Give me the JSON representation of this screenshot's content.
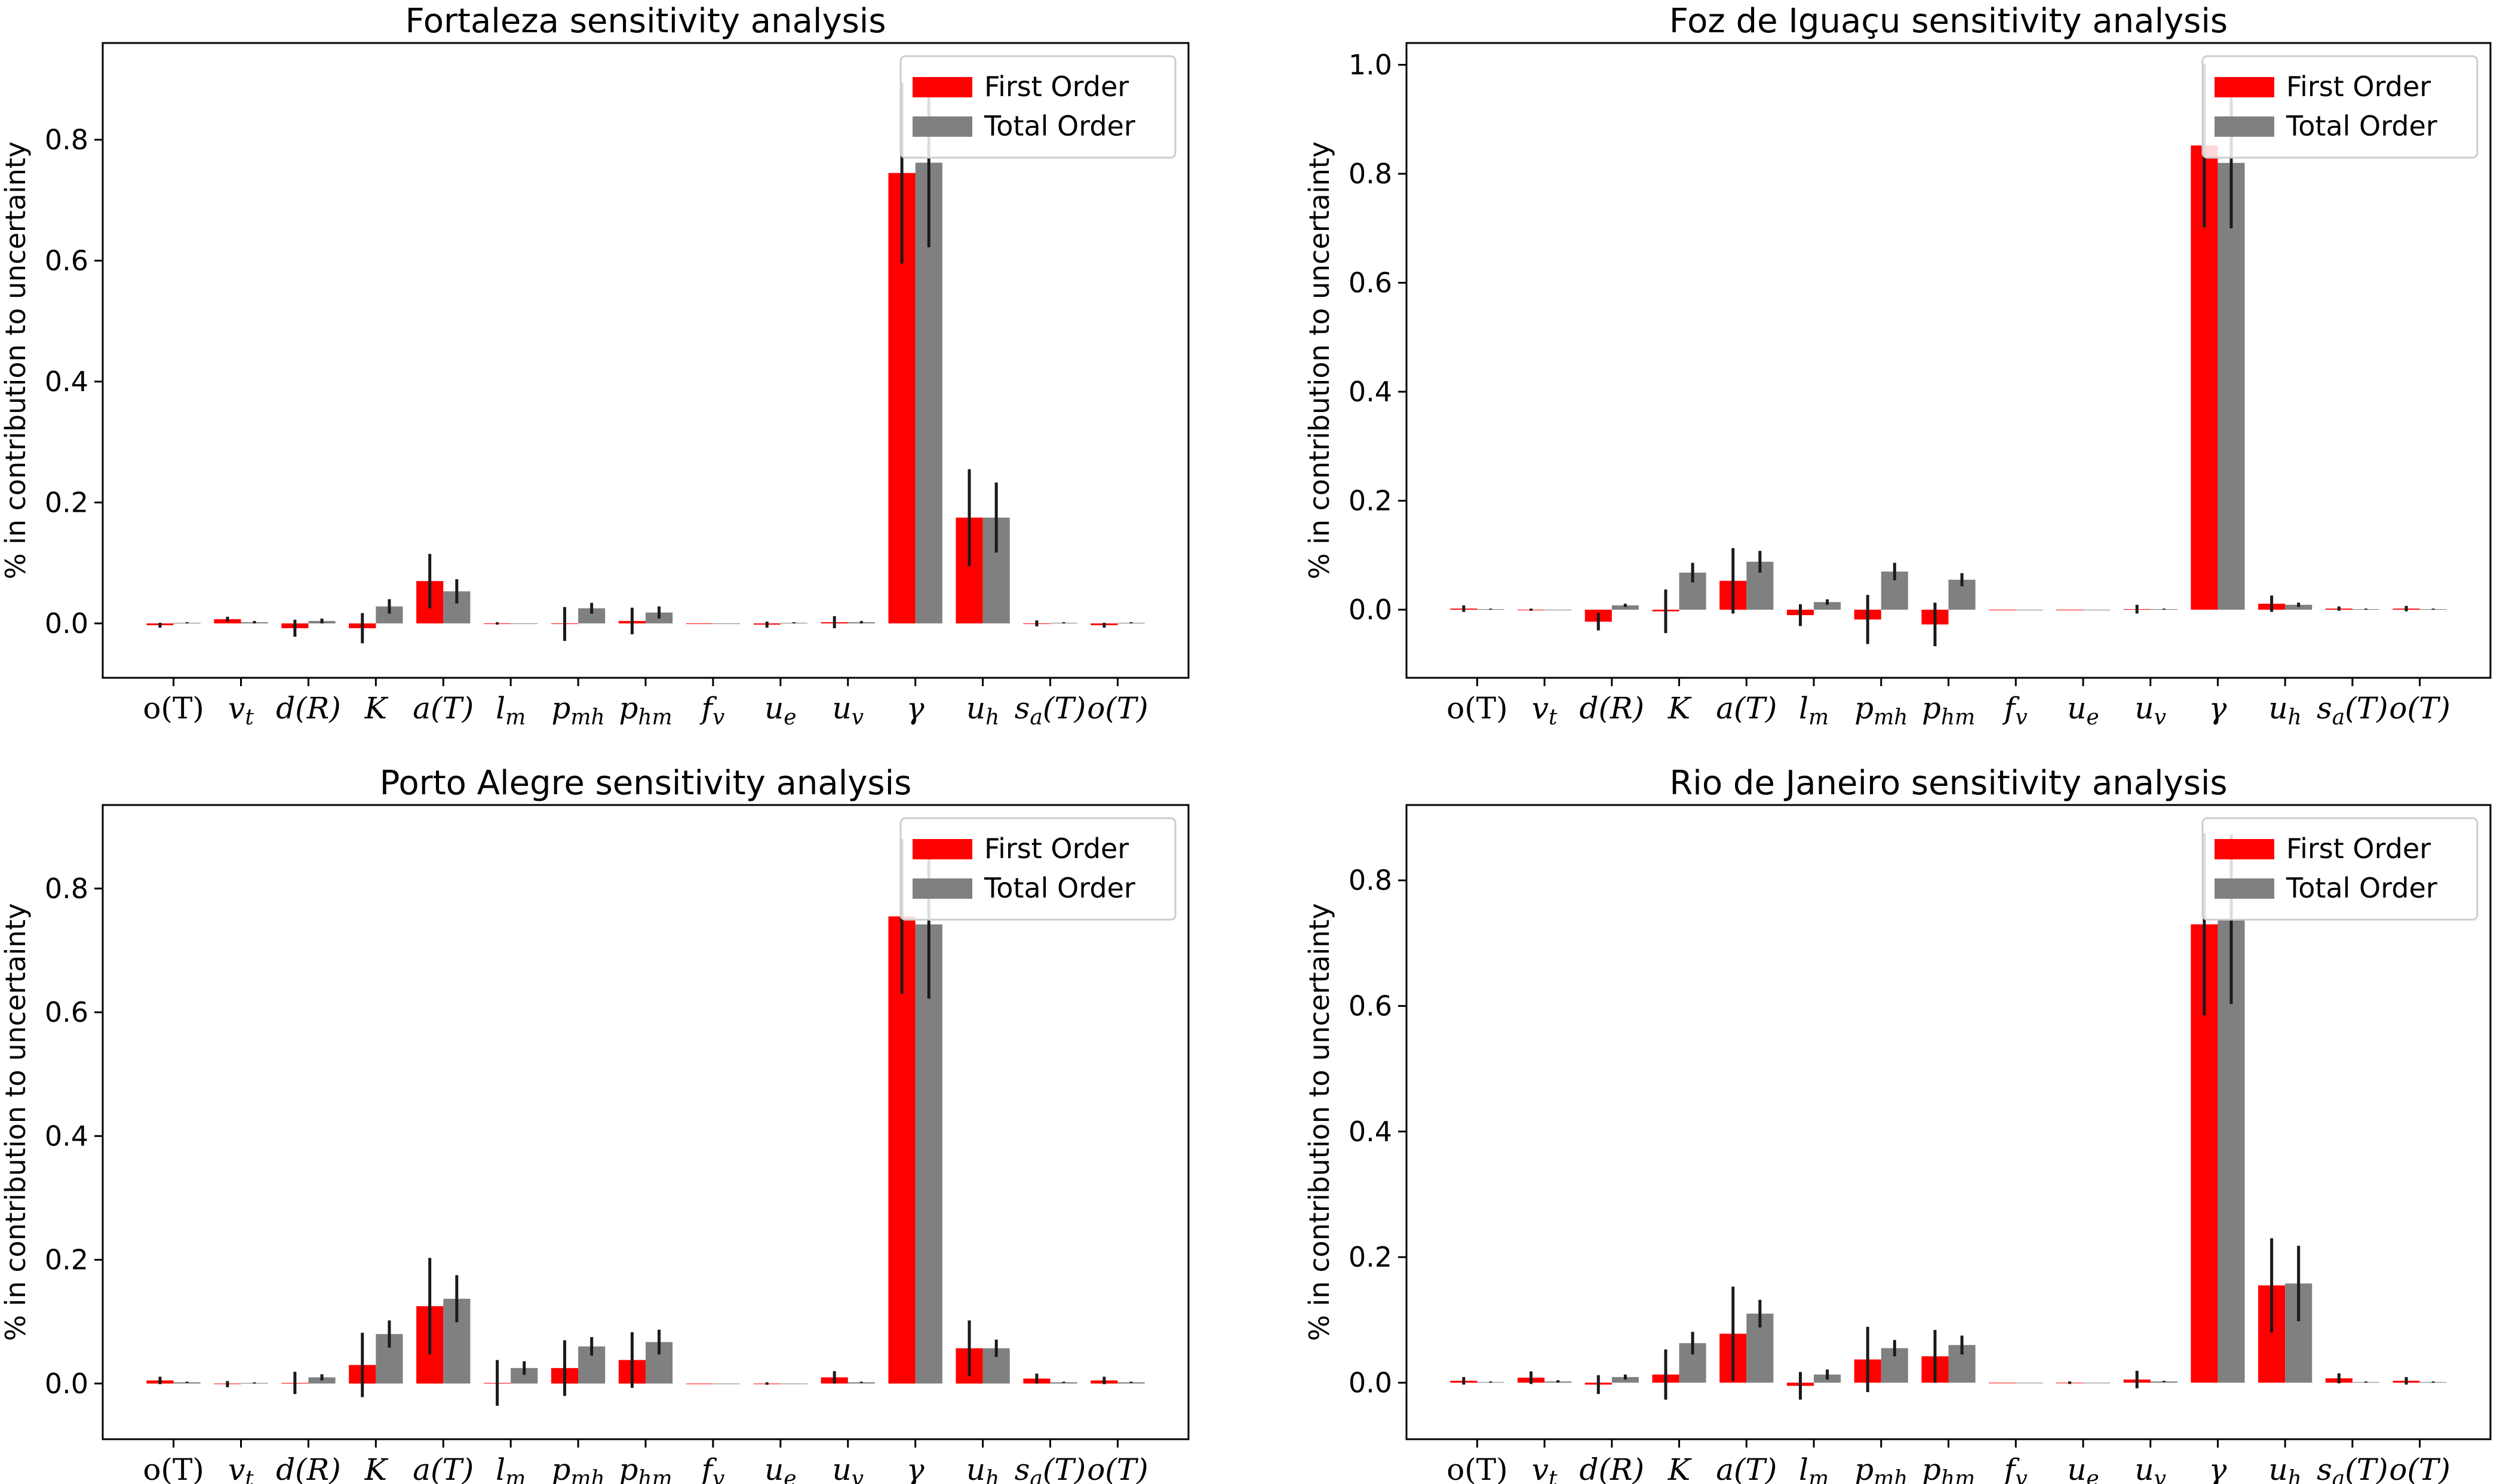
{
  "colors": {
    "first_order": "#ff0000",
    "total_order": "#808080",
    "error_bar": "#1a1a1a",
    "legend_border": "#cccccc"
  },
  "chart_data": [
    {
      "type": "bar",
      "title": "Fortaleza sensitivity analysis",
      "ylabel": "% in contribution to uncertainty",
      "ylim": [
        -0.09,
        0.96
      ],
      "yticks": [
        "0.0",
        "0.2",
        "0.4",
        "0.6",
        "0.8"
      ],
      "legend_position": "top-right",
      "grid": false,
      "categories": [
        "o(T)",
        "v_t",
        "d(R)",
        "K",
        "a(T)",
        "l_m",
        "p_mh",
        "p_hm",
        "f_v",
        "u_e",
        "u_v",
        "γ",
        "u_h",
        "s_a(T)",
        "o(T)"
      ],
      "series": [
        {
          "name": "First Order",
          "values": [
            -0.003,
            0.007,
            -0.008,
            -0.008,
            0.07,
            0.0,
            -0.001,
            0.004,
            0.0,
            -0.002,
            0.002,
            0.745,
            0.175,
            0.0,
            -0.003
          ],
          "errors": [
            0.004,
            0.004,
            0.014,
            0.025,
            0.045,
            0.002,
            0.028,
            0.022,
            0.0,
            0.005,
            0.01,
            0.15,
            0.08,
            0.005,
            0.004
          ]
        },
        {
          "name": "Total Order",
          "values": [
            0.001,
            0.002,
            0.004,
            0.028,
            0.053,
            0.0,
            0.025,
            0.018,
            0.0,
            0.001,
            0.002,
            0.762,
            0.175,
            0.001,
            0.001
          ],
          "errors": [
            0.001,
            0.002,
            0.004,
            0.012,
            0.02,
            0.0,
            0.009,
            0.01,
            0.0,
            0.001,
            0.002,
            0.14,
            0.058,
            0.001,
            0.001
          ]
        }
      ]
    },
    {
      "type": "bar",
      "title": "Foz de Iguaçu sensitivity analysis",
      "ylabel": "% in contribution to uncertainty",
      "ylim": [
        -0.125,
        1.04
      ],
      "yticks": [
        "0.0",
        "0.2",
        "0.4",
        "0.6",
        "0.8",
        "1.0"
      ],
      "legend_position": "top-right",
      "grid": false,
      "categories": [
        "o(T)",
        "v_t",
        "d(R)",
        "K",
        "a(T)",
        "l_m",
        "p_mh",
        "p_hm",
        "f_v",
        "u_e",
        "u_v",
        "γ",
        "u_h",
        "s_a(T)",
        "o(T)"
      ],
      "series": [
        {
          "name": "First Order",
          "values": [
            0.002,
            0.0,
            -0.022,
            -0.003,
            0.053,
            -0.01,
            -0.018,
            -0.027,
            0.0,
            0.0,
            0.001,
            0.852,
            0.011,
            0.002,
            0.002
          ],
          "errors": [
            0.006,
            0.002,
            0.016,
            0.04,
            0.06,
            0.02,
            0.045,
            0.04,
            0.0,
            0.0,
            0.008,
            0.15,
            0.015,
            0.004,
            0.005
          ]
        },
        {
          "name": "Total Order",
          "values": [
            0.001,
            0.0,
            0.008,
            0.068,
            0.088,
            0.014,
            0.07,
            0.055,
            0.0,
            0.0,
            0.001,
            0.82,
            0.009,
            0.001,
            0.001
          ],
          "errors": [
            0.001,
            0.0,
            0.003,
            0.018,
            0.02,
            0.005,
            0.016,
            0.012,
            0.0,
            0.0,
            0.001,
            0.12,
            0.004,
            0.001,
            0.001
          ]
        }
      ]
    },
    {
      "type": "bar",
      "title": "Porto Alegre sensitivity analysis",
      "ylabel": "% in contribution to uncertainty",
      "ylim": [
        -0.09,
        0.935
      ],
      "yticks": [
        "0.0",
        "0.2",
        "0.4",
        "0.6",
        "0.8"
      ],
      "legend_position": "top-right",
      "grid": false,
      "categories": [
        "o(T)",
        "v_t",
        "d(R)",
        "K",
        "a(T)",
        "l_m",
        "p_mh",
        "p_hm",
        "f_v",
        "u_e",
        "u_v",
        "γ",
        "u_h",
        "s_a(T)",
        "o(T)"
      ],
      "series": [
        {
          "name": "First Order",
          "values": [
            0.005,
            -0.001,
            0.001,
            0.03,
            0.125,
            0.001,
            0.025,
            0.038,
            0.0,
            0.0,
            0.01,
            0.755,
            0.057,
            0.008,
            0.005
          ],
          "errors": [
            0.006,
            0.005,
            0.018,
            0.052,
            0.078,
            0.037,
            0.045,
            0.045,
            0.0,
            0.002,
            0.01,
            0.125,
            0.045,
            0.008,
            0.006
          ]
        },
        {
          "name": "Total Order",
          "values": [
            0.002,
            0.001,
            0.01,
            0.08,
            0.137,
            0.025,
            0.06,
            0.067,
            0.0,
            0.0,
            0.002,
            0.742,
            0.057,
            0.002,
            0.002
          ],
          "errors": [
            0.001,
            0.001,
            0.005,
            0.022,
            0.038,
            0.011,
            0.015,
            0.02,
            0.0,
            0.0,
            0.001,
            0.12,
            0.014,
            0.001,
            0.001
          ]
        }
      ]
    },
    {
      "type": "bar",
      "title": "Rio de Janeiro sensitivity analysis",
      "ylabel": "% in contribution to uncertainty",
      "ylim": [
        -0.09,
        0.92
      ],
      "yticks": [
        "0.0",
        "0.2",
        "0.4",
        "0.6",
        "0.8"
      ],
      "legend_position": "top-right",
      "grid": false,
      "categories": [
        "o(T)",
        "v_t",
        "d(R)",
        "K",
        "a(T)",
        "l_m",
        "p_mh",
        "p_hm",
        "f_v",
        "u_e",
        "u_v",
        "γ",
        "u_h",
        "s_a(T)",
        "o(T)"
      ],
      "series": [
        {
          "name": "First Order",
          "values": [
            0.003,
            0.008,
            -0.003,
            0.013,
            0.078,
            -0.005,
            0.037,
            0.042,
            0.0,
            0.0,
            0.005,
            0.73,
            0.155,
            0.007,
            0.003
          ],
          "errors": [
            0.006,
            0.01,
            0.015,
            0.04,
            0.075,
            0.022,
            0.052,
            0.042,
            0.0,
            0.002,
            0.014,
            0.145,
            0.075,
            0.008,
            0.006
          ]
        },
        {
          "name": "Total Order",
          "values": [
            0.001,
            0.002,
            0.009,
            0.063,
            0.11,
            0.013,
            0.055,
            0.06,
            0.0,
            0.0,
            0.002,
            0.738,
            0.158,
            0.001,
            0.001
          ],
          "errors": [
            0.001,
            0.002,
            0.004,
            0.018,
            0.022,
            0.008,
            0.013,
            0.015,
            0.0,
            0.0,
            0.001,
            0.135,
            0.06,
            0.001,
            0.001
          ]
        }
      ]
    }
  ]
}
